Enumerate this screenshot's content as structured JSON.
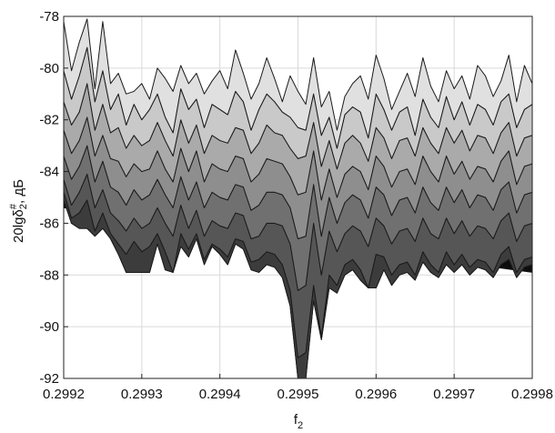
{
  "chart_data": {
    "type": "area",
    "subtype": "surface-side-view",
    "xlabel": "f",
    "xlabel_subscript": "2",
    "ylabel_main": "20lgδ",
    "ylabel_subscript": "2",
    "ylabel_superscript": "#",
    "ylabel_suffix": ", дБ",
    "xlim": [
      0.2992,
      0.2998
    ],
    "ylim": [
      -92,
      -78
    ],
    "xticks": [
      0.2992,
      0.2993,
      0.2994,
      0.2995,
      0.2996,
      0.2997,
      0.2998
    ],
    "xtick_labels": [
      "0.2992",
      "0.2993",
      "0.2994",
      "0.2995",
      "0.2996",
      "0.2997",
      "0.2998"
    ],
    "yticks": [
      -92,
      -90,
      -88,
      -86,
      -84,
      -82,
      -80,
      -78
    ],
    "ytick_labels": [
      "-92",
      "-90",
      "-88",
      "-86",
      "-84",
      "-82",
      "-80",
      "-78"
    ],
    "grid": true,
    "x": [
      0.2992,
      0.29921,
      0.29922,
      0.29923,
      0.29924,
      0.29925,
      0.29926,
      0.29927,
      0.29928,
      0.29929,
      0.2993,
      0.29931,
      0.29932,
      0.29933,
      0.29934,
      0.29935,
      0.29936,
      0.29937,
      0.29938,
      0.29939,
      0.2994,
      0.29941,
      0.29942,
      0.29943,
      0.29944,
      0.29945,
      0.29946,
      0.29947,
      0.29948,
      0.29949,
      0.2995,
      0.29951,
      0.29952,
      0.29953,
      0.29954,
      0.29955,
      0.29956,
      0.29957,
      0.29958,
      0.29959,
      0.2996,
      0.29961,
      0.29962,
      0.29963,
      0.29964,
      0.29965,
      0.29966,
      0.29967,
      0.29968,
      0.29969,
      0.2997,
      0.29971,
      0.29972,
      0.29973,
      0.29974,
      0.29975,
      0.29976,
      0.29977,
      0.29978,
      0.29979,
      0.2998
    ],
    "series": [
      {
        "values": [
          -78.2,
          -80.1,
          -79.0,
          -78.1,
          -80.8,
          -78.2,
          -80.6,
          -80.2,
          -81.0,
          -80.9,
          -80.6,
          -81.2,
          -80.0,
          -80.4,
          -80.9,
          -79.9,
          -80.6,
          -80.2,
          -81.0,
          -80.5,
          -80.1,
          -80.8,
          -79.3,
          -80.2,
          -81.2,
          -80.6,
          -79.6,
          -80.4,
          -81.3,
          -80.3,
          -80.9,
          -81.4,
          -79.6,
          -81.5,
          -80.9,
          -82.4,
          -81.1,
          -80.6,
          -80.3,
          -81.2,
          -79.5,
          -80.4,
          -81.6,
          -80.9,
          -80.2,
          -81.1,
          -79.6,
          -80.7,
          -81.3,
          -80.1,
          -80.8,
          -80.3,
          -81.2,
          -79.9,
          -80.3,
          -81.1,
          -80.5,
          -79.5,
          -81.3,
          -79.9,
          -80.6
        ]
      },
      {
        "values": [
          -80.1,
          -81.2,
          -80.3,
          -79.2,
          -81.3,
          -80.1,
          -81.6,
          -81.0,
          -82.2,
          -81.4,
          -82.0,
          -81.6,
          -81.0,
          -81.9,
          -82.5,
          -80.8,
          -81.6,
          -81.2,
          -82.3,
          -81.4,
          -81.6,
          -81.8,
          -80.9,
          -81.3,
          -82.4,
          -81.6,
          -81.0,
          -81.3,
          -81.7,
          -81.9,
          -82.3,
          -82.4,
          -81.0,
          -82.6,
          -81.9,
          -83.1,
          -81.8,
          -81.5,
          -81.7,
          -82.7,
          -81.0,
          -81.6,
          -82.4,
          -81.7,
          -81.5,
          -82.6,
          -81.2,
          -81.9,
          -82.3,
          -81.1,
          -82.0,
          -81.3,
          -82.2,
          -81.4,
          -81.6,
          -82.2,
          -81.3,
          -81.0,
          -82.3,
          -81.6,
          -81.4
        ]
      },
      {
        "values": [
          -81.3,
          -82.2,
          -81.7,
          -80.6,
          -82.4,
          -81.4,
          -82.5,
          -82.3,
          -83.1,
          -82.6,
          -83.0,
          -82.8,
          -82.1,
          -82.8,
          -83.4,
          -82.0,
          -82.9,
          -82.2,
          -83.3,
          -82.6,
          -82.8,
          -82.9,
          -82.3,
          -82.4,
          -83.3,
          -82.9,
          -82.2,
          -82.5,
          -82.6,
          -83.1,
          -83.5,
          -83.4,
          -82.1,
          -83.8,
          -82.8,
          -83.9,
          -82.9,
          -82.6,
          -82.9,
          -83.6,
          -82.3,
          -82.7,
          -83.5,
          -82.8,
          -82.7,
          -83.4,
          -82.3,
          -82.9,
          -83.3,
          -82.3,
          -82.9,
          -82.4,
          -83.2,
          -82.6,
          -82.7,
          -83.3,
          -82.5,
          -82.1,
          -83.4,
          -82.7,
          -82.6
        ]
      },
      {
        "values": [
          -82.4,
          -83.3,
          -82.8,
          -81.9,
          -83.4,
          -82.6,
          -83.5,
          -83.6,
          -84.2,
          -83.7,
          -84.0,
          -83.9,
          -83.2,
          -83.9,
          -84.4,
          -83.1,
          -84.0,
          -83.2,
          -84.4,
          -83.7,
          -83.9,
          -84.0,
          -83.4,
          -83.5,
          -84.4,
          -84.1,
          -83.5,
          -83.6,
          -83.7,
          -84.2,
          -84.9,
          -84.8,
          -83.2,
          -85.1,
          -83.9,
          -85.0,
          -84.1,
          -83.8,
          -84.0,
          -84.7,
          -83.4,
          -83.8,
          -84.6,
          -84.0,
          -83.9,
          -84.5,
          -83.4,
          -84.0,
          -84.4,
          -83.4,
          -84.1,
          -83.6,
          -84.3,
          -83.8,
          -83.9,
          -84.4,
          -83.6,
          -83.2,
          -84.5,
          -83.8,
          -83.7
        ]
      },
      {
        "values": [
          -83.4,
          -84.3,
          -83.8,
          -83.0,
          -84.4,
          -83.6,
          -84.6,
          -84.8,
          -85.3,
          -84.7,
          -85.1,
          -84.9,
          -84.3,
          -84.9,
          -85.4,
          -84.2,
          -85.1,
          -84.4,
          -85.4,
          -84.8,
          -85.0,
          -85.1,
          -84.5,
          -84.6,
          -85.5,
          -85.3,
          -84.8,
          -84.8,
          -84.9,
          -85.4,
          -86.6,
          -86.5,
          -84.5,
          -86.5,
          -85.0,
          -86.0,
          -85.2,
          -84.9,
          -85.1,
          -85.8,
          -84.6,
          -84.9,
          -85.7,
          -85.1,
          -85.0,
          -85.6,
          -84.6,
          -85.2,
          -85.5,
          -84.6,
          -85.2,
          -84.7,
          -85.4,
          -84.9,
          -85.0,
          -85.5,
          -84.7,
          -84.4,
          -85.6,
          -84.9,
          -84.8
        ]
      },
      {
        "values": [
          -84.3,
          -85.3,
          -84.8,
          -84.1,
          -85.4,
          -84.7,
          -85.6,
          -85.9,
          -86.3,
          -85.8,
          -86.2,
          -86.0,
          -85.4,
          -86.0,
          -86.5,
          -85.3,
          -86.2,
          -85.5,
          -86.5,
          -85.9,
          -86.1,
          -86.2,
          -85.6,
          -85.7,
          -86.6,
          -86.5,
          -86.0,
          -86.0,
          -86.1,
          -86.8,
          -88.6,
          -88.4,
          -86.0,
          -88.0,
          -86.3,
          -87.1,
          -86.4,
          -86.1,
          -86.3,
          -86.9,
          -85.8,
          -86.1,
          -86.8,
          -86.3,
          -86.2,
          -86.7,
          -85.8,
          -86.4,
          -86.6,
          -85.8,
          -86.4,
          -85.9,
          -86.5,
          -86.1,
          -86.2,
          -86.6,
          -85.9,
          -85.6,
          -86.7,
          -86.1,
          -86.0
        ]
      },
      {
        "values": [
          -84.8,
          -85.8,
          -85.6,
          -85.1,
          -86.3,
          -85.6,
          -86.4,
          -86.8,
          -87.2,
          -86.7,
          -87.1,
          -86.9,
          -86.4,
          -87.1,
          -87.9,
          -86.4,
          -87.0,
          -86.4,
          -87.4,
          -86.8,
          -87.0,
          -87.3,
          -86.6,
          -86.7,
          -87.5,
          -87.4,
          -87.1,
          -87.2,
          -87.6,
          -88.6,
          -91.2,
          -91.0,
          -88.4,
          -90.4,
          -88.0,
          -88.4,
          -87.6,
          -87.4,
          -87.8,
          -88.5,
          -87.2,
          -87.3,
          -88.0,
          -87.6,
          -87.5,
          -88.0,
          -87.1,
          -87.6,
          -87.9,
          -87.1,
          -87.6,
          -87.2,
          -87.7,
          -87.4,
          -87.5,
          -87.9,
          -87.2,
          -86.9,
          -87.9,
          -87.4,
          -87.3
        ]
      },
      {
        "values": [
          -85.1,
          -86.0,
          -86.2,
          -86.2,
          -86.5,
          -86.2,
          -86.6,
          -87.2,
          -87.9,
          -87.9,
          -87.9,
          -87.9,
          -86.8,
          -87.8,
          -87.9,
          -86.9,
          -87.3,
          -86.6,
          -87.6,
          -86.9,
          -87.2,
          -87.6,
          -86.8,
          -87.0,
          -87.8,
          -87.9,
          -87.6,
          -87.7,
          -88.1,
          -89.2,
          -92.0,
          -92.0,
          -89.0,
          -90.5,
          -88.5,
          -88.7,
          -88.0,
          -87.8,
          -88.2,
          -88.5,
          -88.5,
          -87.8,
          -88.4,
          -88.0,
          -87.9,
          -88.2,
          -87.5,
          -87.9,
          -88.1,
          -87.6,
          -87.9,
          -87.6,
          -88.0,
          -87.7,
          -87.8,
          -88.1,
          -87.6,
          -87.4,
          -88.1,
          -87.7,
          -87.6
        ]
      }
    ]
  }
}
